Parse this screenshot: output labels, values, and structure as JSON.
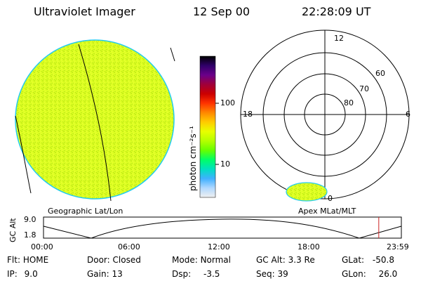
{
  "header": {
    "instrument": "Ultraviolet Imager",
    "date": "12 Sep 00",
    "time": "22:28:09 UT"
  },
  "colorbar": {
    "unit_label": "photon cm⁻²s⁻¹",
    "ticks": [
      "100",
      "10"
    ],
    "scale": "log",
    "stops": [
      "#000000",
      "#30006a",
      "#6a008a",
      "#a0003a",
      "#cc0000",
      "#ff3300",
      "#ff8800",
      "#ffcc00",
      "#e8ff00",
      "#b4ff00",
      "#66ff00",
      "#00ff66",
      "#00e0c0",
      "#40b0ff",
      "#b0d8ff",
      "#f0f0f0"
    ]
  },
  "polar_plot": {
    "mlt_labels": {
      "top": "12",
      "left": "18",
      "right": "6",
      "bottom": "0"
    },
    "lat_labels": [
      "60",
      "70",
      "80"
    ],
    "coord_system": "Apex MLat/MLT"
  },
  "globe": {
    "coord_system": "Geographic Lat/Lon",
    "fill_color": "#ddff22"
  },
  "altitude_plot": {
    "y_label": "GC Alt",
    "y_ticks": [
      "9.0",
      "1.8"
    ],
    "x_ticks": [
      "00:00",
      "06:00",
      "12:00",
      "18:00",
      "23:59"
    ],
    "current_time_marker_hours": 22.47,
    "marker_color": "#cc2222"
  },
  "info": {
    "flt_label": "Flt:",
    "flt_value": "HOME",
    "ip_label": "IP:",
    "ip_value": "9.0",
    "door_label": "Door:",
    "door_value": "Closed",
    "gain_label": "Gain:",
    "gain_value": "13",
    "mode_label": "Mode:",
    "mode_value": "Normal",
    "dsp_label": "Dsp:",
    "dsp_value": "-3.5",
    "gcalt_label": "GC Alt:",
    "gcalt_value": "3.3 Re",
    "seq_label": "Seq:",
    "seq_value": "39",
    "glat_label": "GLat:",
    "glat_value": "-50.8",
    "glon_label": "GLon:",
    "glon_value": "26.0"
  }
}
